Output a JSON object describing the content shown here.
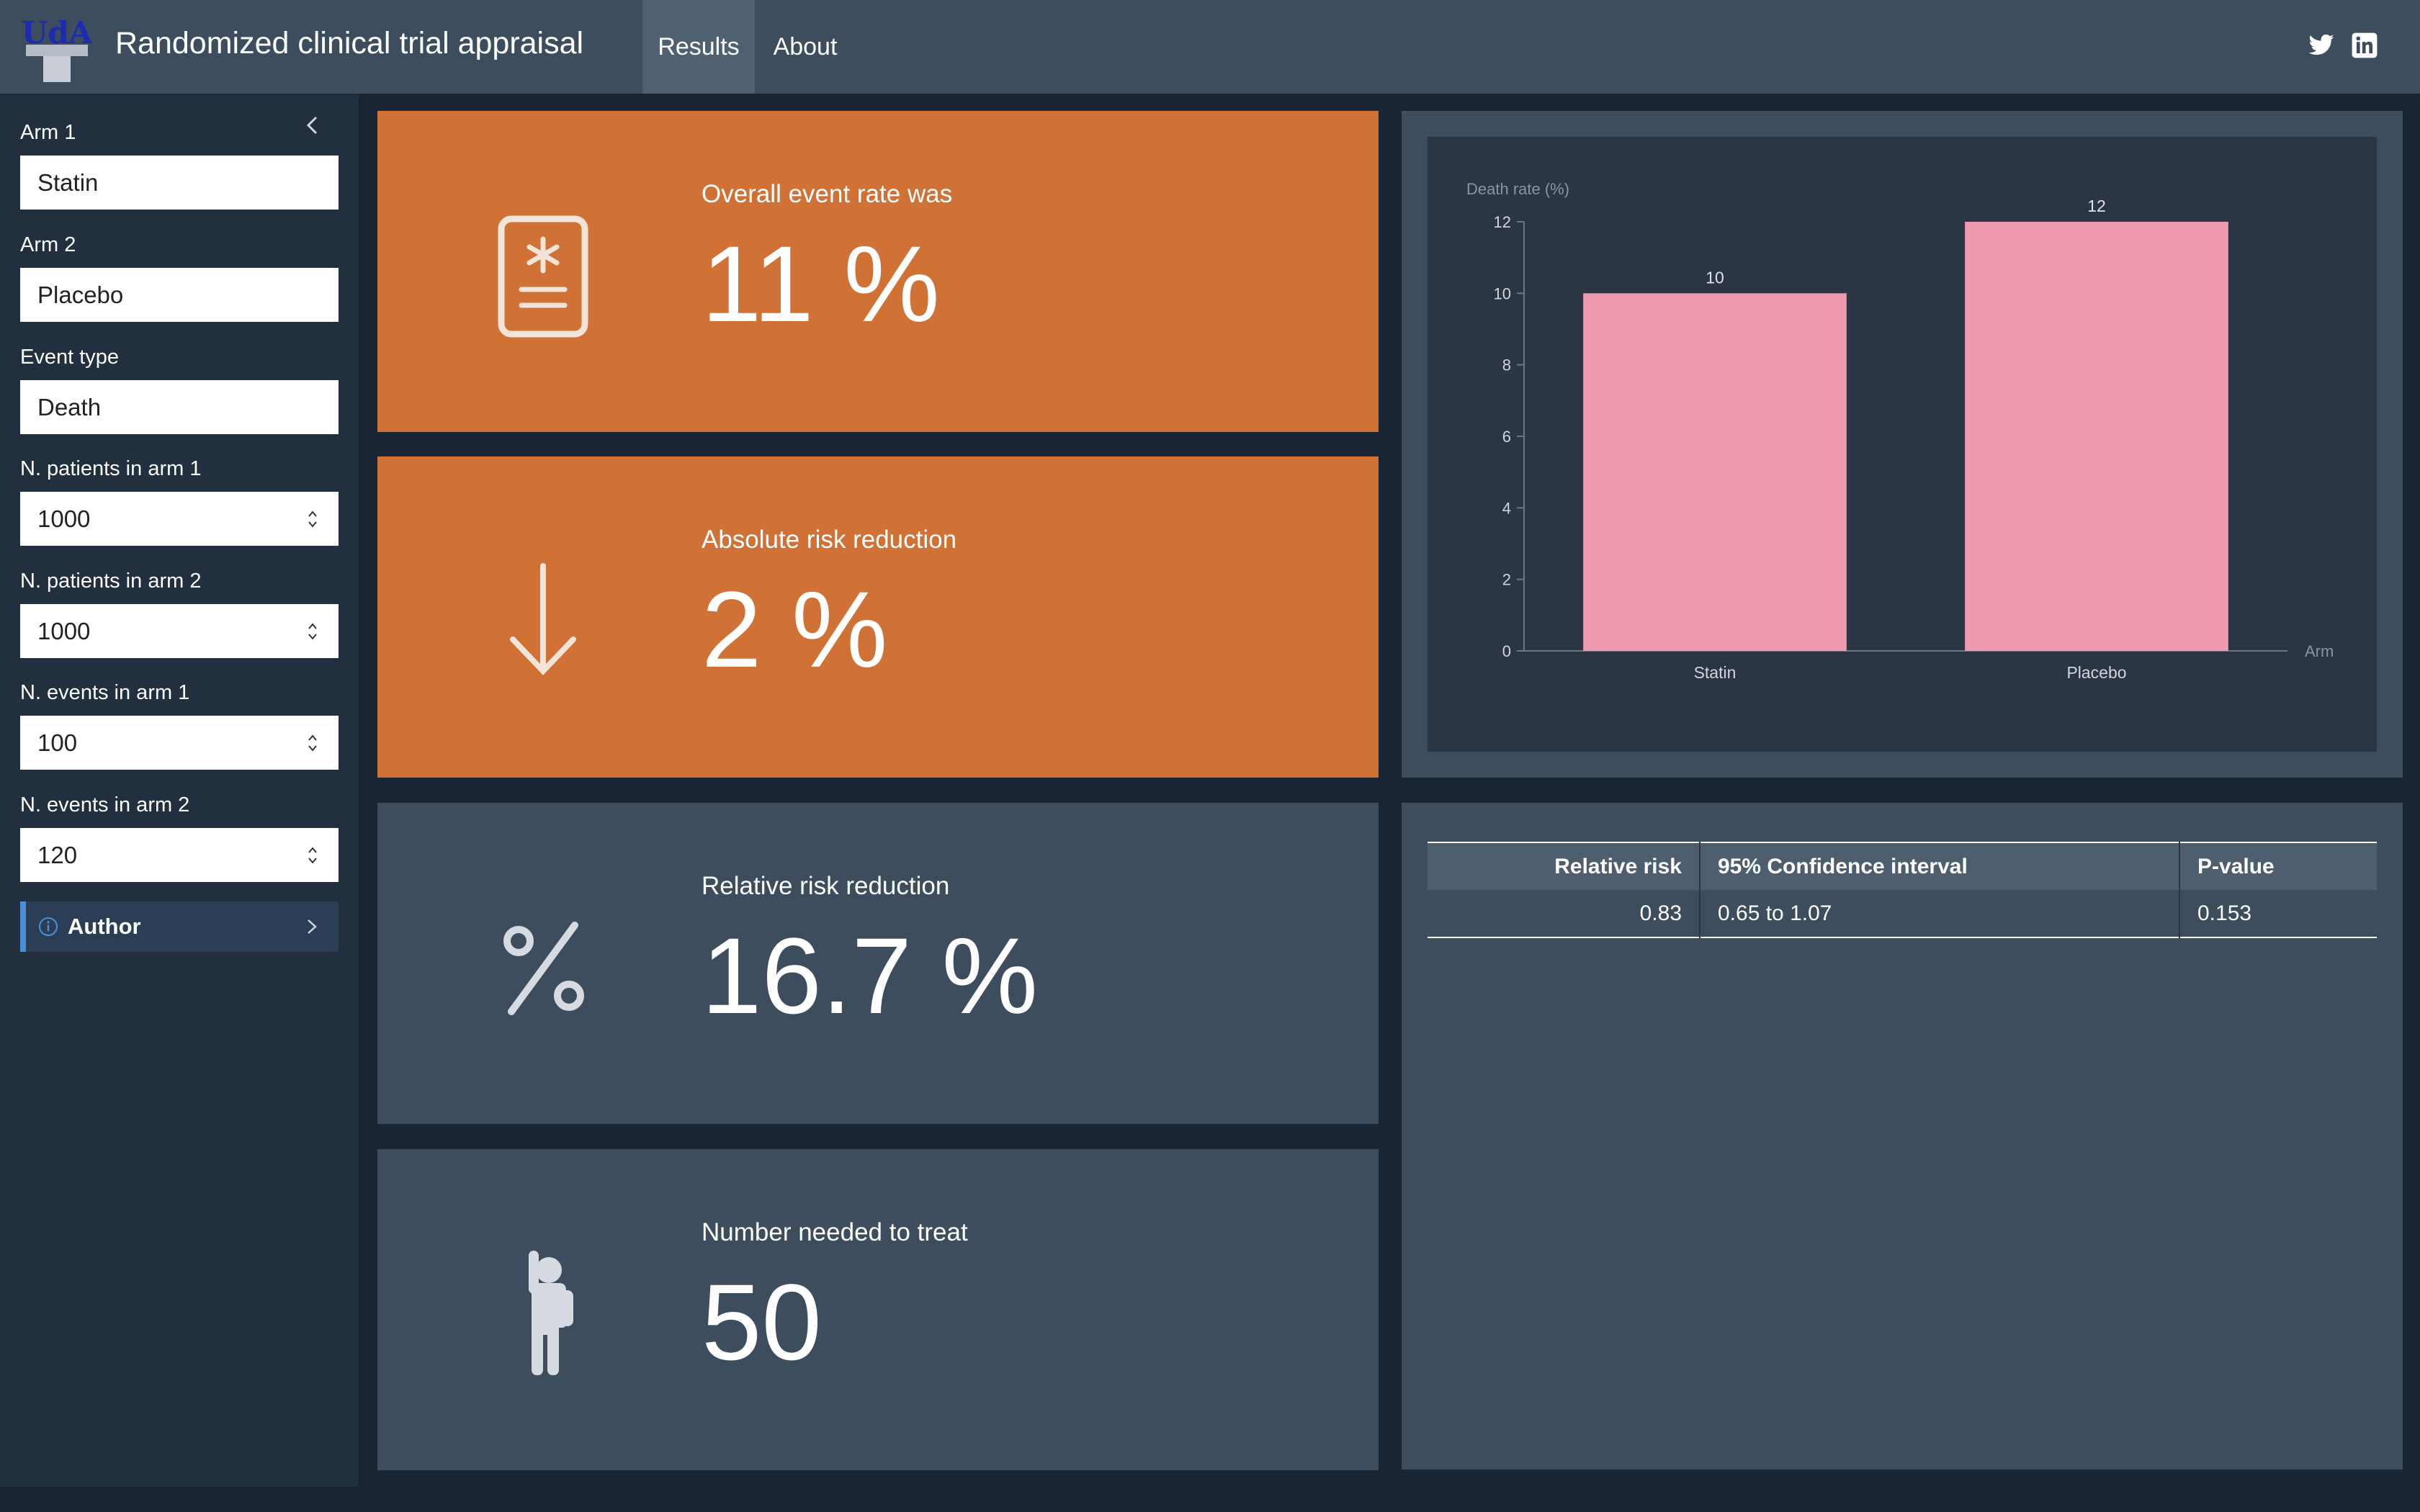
{
  "navbar": {
    "logo_text": "UdA",
    "title": "Randomized clinical trial appraisal",
    "tabs": [
      {
        "label": "Results",
        "active": true
      },
      {
        "label": "About",
        "active": false
      }
    ],
    "social_icons": [
      "twitter-icon",
      "linkedin-icon"
    ]
  },
  "sidebar": {
    "fields": [
      {
        "label": "Arm 1",
        "value": "Statin",
        "type": "text"
      },
      {
        "label": "Arm 2",
        "value": "Placebo",
        "type": "text"
      },
      {
        "label": "Event type",
        "value": "Death",
        "type": "text"
      },
      {
        "label": "N. patients in arm 1",
        "value": "1000",
        "type": "number"
      },
      {
        "label": "N. patients in arm 2",
        "value": "1000",
        "type": "number"
      },
      {
        "label": "N. events in arm 1",
        "value": "100",
        "type": "number"
      },
      {
        "label": "N. events in arm 2",
        "value": "120",
        "type": "number"
      }
    ],
    "author_label": "Author"
  },
  "value_boxes": [
    {
      "title": "Overall event rate was",
      "value": "11 %",
      "icon": "medical-file-icon",
      "color": "#d07135"
    },
    {
      "title": "Absolute risk reduction",
      "value": "2 %",
      "icon": "arrow-down-icon",
      "color": "#d07135"
    },
    {
      "title": "Relative risk reduction",
      "value": "16.7 %",
      "icon": "percent-icon",
      "color": "#3d4d5d"
    },
    {
      "title": "Number needed to treat",
      "value": "50",
      "icon": "person-icon",
      "color": "#3d4d5d"
    }
  ],
  "chart_data": {
    "type": "bar",
    "categories": [
      "Statin",
      "Placebo"
    ],
    "values": [
      10,
      12
    ],
    "ylabel": "Death rate (%)",
    "xlabel": "Arm",
    "ylim": [
      0,
      12
    ],
    "yticks": [
      0,
      2,
      4,
      6,
      8,
      10,
      12
    ],
    "bar_color": "#ee9aaf",
    "grid": false
  },
  "results_table": {
    "headers": [
      "Relative risk",
      "95% Confidence interval",
      "P-value"
    ],
    "rows": [
      [
        "0.83",
        "0.65 to 1.07",
        "0.153"
      ]
    ]
  }
}
